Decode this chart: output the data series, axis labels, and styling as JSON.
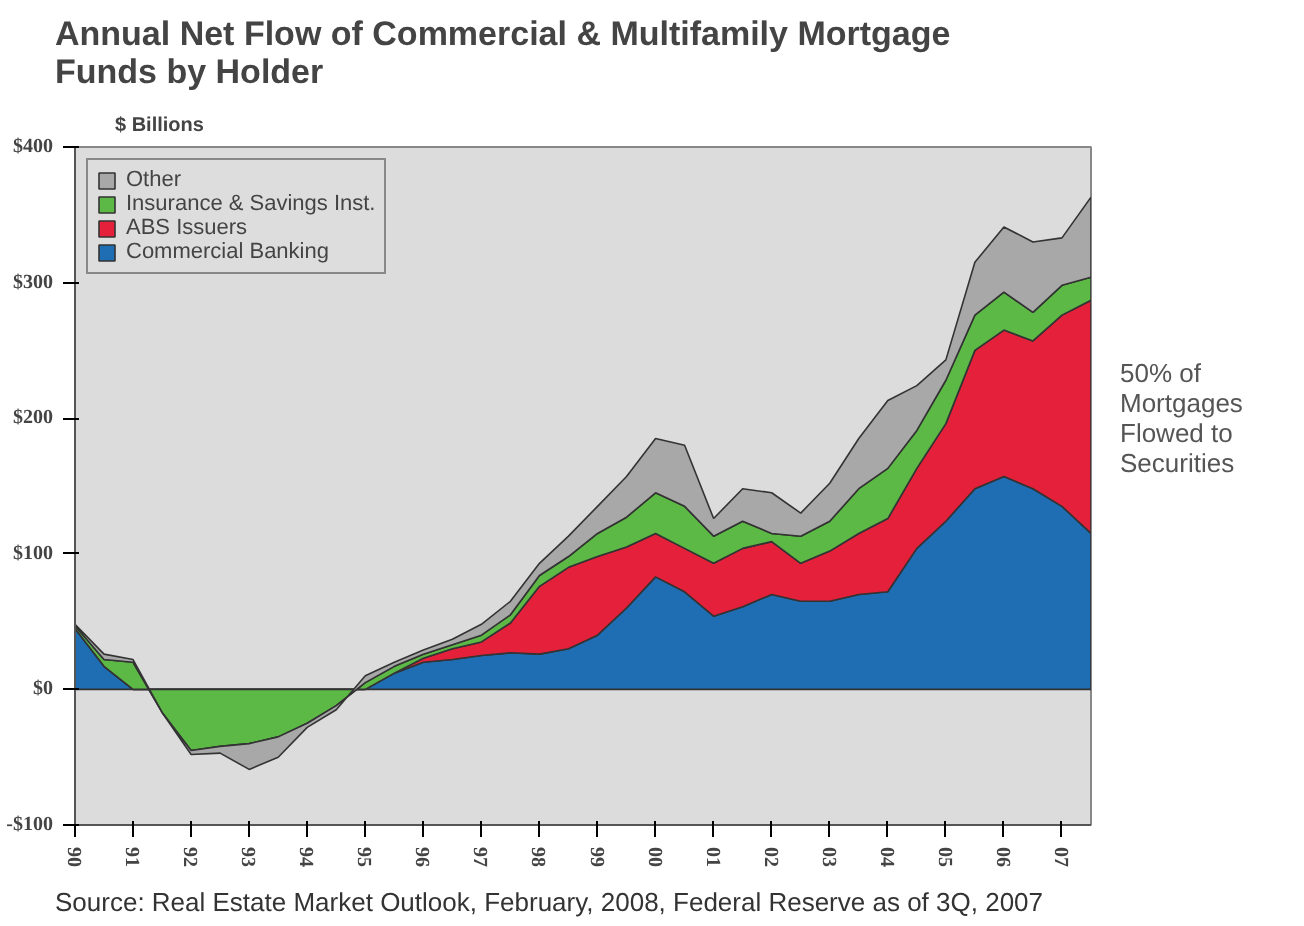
{
  "chart_data": {
    "type": "area",
    "stacked": true,
    "title": "Annual Net Flow of Commercial & Multifamily Mortgage Funds by Holder",
    "ylabel": "$ Billions",
    "x": [
      1990,
      1990.5,
      1991,
      1991.5,
      1992,
      1992.5,
      1993,
      1993.5,
      1994,
      1994.5,
      1995,
      1995.5,
      1996,
      1996.5,
      1997,
      1997.5,
      1998,
      1998.5,
      1999,
      1999.5,
      2000,
      2000.5,
      2001,
      2001.5,
      2002,
      2002.5,
      2003,
      2003.5,
      2004,
      2004.5,
      2005,
      2005.5,
      2006,
      2006.5,
      2007,
      2007.5
    ],
    "series": [
      {
        "name": "Commercial Banking",
        "color": "#1f6db3",
        "values": [
          45,
          17,
          0,
          0,
          0,
          0,
          0,
          0,
          0,
          0,
          0,
          12,
          20,
          22,
          25,
          27,
          26,
          30,
          40,
          60,
          83,
          72,
          54,
          61,
          70,
          65,
          65,
          70,
          72,
          104,
          124,
          148,
          157,
          148,
          135,
          115
        ]
      },
      {
        "name": "ABS Issuers",
        "color": "#e5203a",
        "values": [
          0,
          0,
          0,
          0,
          0,
          0,
          0,
          0,
          0,
          0,
          0,
          0,
          3,
          8,
          10,
          22,
          50,
          60,
          58,
          45,
          32,
          32,
          39,
          43,
          39,
          28,
          37,
          45,
          54,
          59,
          72,
          102,
          108,
          109,
          141,
          172
        ]
      },
      {
        "name": "Insurance & Savings Inst.",
        "color": "#5cb946",
        "values": [
          2,
          5,
          20,
          -17,
          -45,
          -42,
          -40,
          -35,
          -25,
          -12,
          5,
          5,
          3,
          3,
          5,
          6,
          8,
          8,
          17,
          22,
          30,
          31,
          20,
          20,
          6,
          20,
          22,
          33,
          37,
          28,
          32,
          26,
          28,
          21,
          22,
          17
        ]
      },
      {
        "name": "Other",
        "color": "#a8a8a8",
        "values": [
          1,
          4,
          2,
          0,
          -3,
          -5,
          -19,
          -15,
          -3,
          -3,
          5,
          3,
          3,
          4,
          8,
          10,
          9,
          15,
          20,
          30,
          40,
          45,
          13,
          24,
          30,
          17,
          28,
          37,
          50,
          33,
          15,
          39,
          48,
          52,
          35,
          59
        ]
      }
    ],
    "xlim": [
      1990,
      2007.5
    ],
    "ylim": [
      -100,
      400
    ],
    "xticks": [
      {
        "value": 1990,
        "label": "90"
      },
      {
        "value": 1991,
        "label": "91"
      },
      {
        "value": 1992,
        "label": "92"
      },
      {
        "value": 1993,
        "label": "93"
      },
      {
        "value": 1994,
        "label": "94"
      },
      {
        "value": 1995,
        "label": "95"
      },
      {
        "value": 1996,
        "label": "96"
      },
      {
        "value": 1997,
        "label": "97"
      },
      {
        "value": 1998,
        "label": "98"
      },
      {
        "value": 1999,
        "label": "99"
      },
      {
        "value": 2000,
        "label": "00"
      },
      {
        "value": 2001,
        "label": "01"
      },
      {
        "value": 2002,
        "label": "02"
      },
      {
        "value": 2003,
        "label": "03"
      },
      {
        "value": 2004,
        "label": "04"
      },
      {
        "value": 2005,
        "label": "05"
      },
      {
        "value": 2006,
        "label": "06"
      },
      {
        "value": 2007,
        "label": "07"
      }
    ],
    "yticks": [
      {
        "value": -100,
        "label": "-$100"
      },
      {
        "value": 0,
        "label": "$0"
      },
      {
        "value": 100,
        "label": "$100"
      },
      {
        "value": 200,
        "label": "$200"
      },
      {
        "value": 300,
        "label": "$300"
      },
      {
        "value": 400,
        "label": "$400"
      }
    ],
    "legend": "top left",
    "grid": false,
    "annotations": [
      "50% of Mortgages Flowed to Securities",
      "Source: Real Estate Market Outlook, February, 2008, Federal Reserve as of 3Q, 2007"
    ]
  }
}
